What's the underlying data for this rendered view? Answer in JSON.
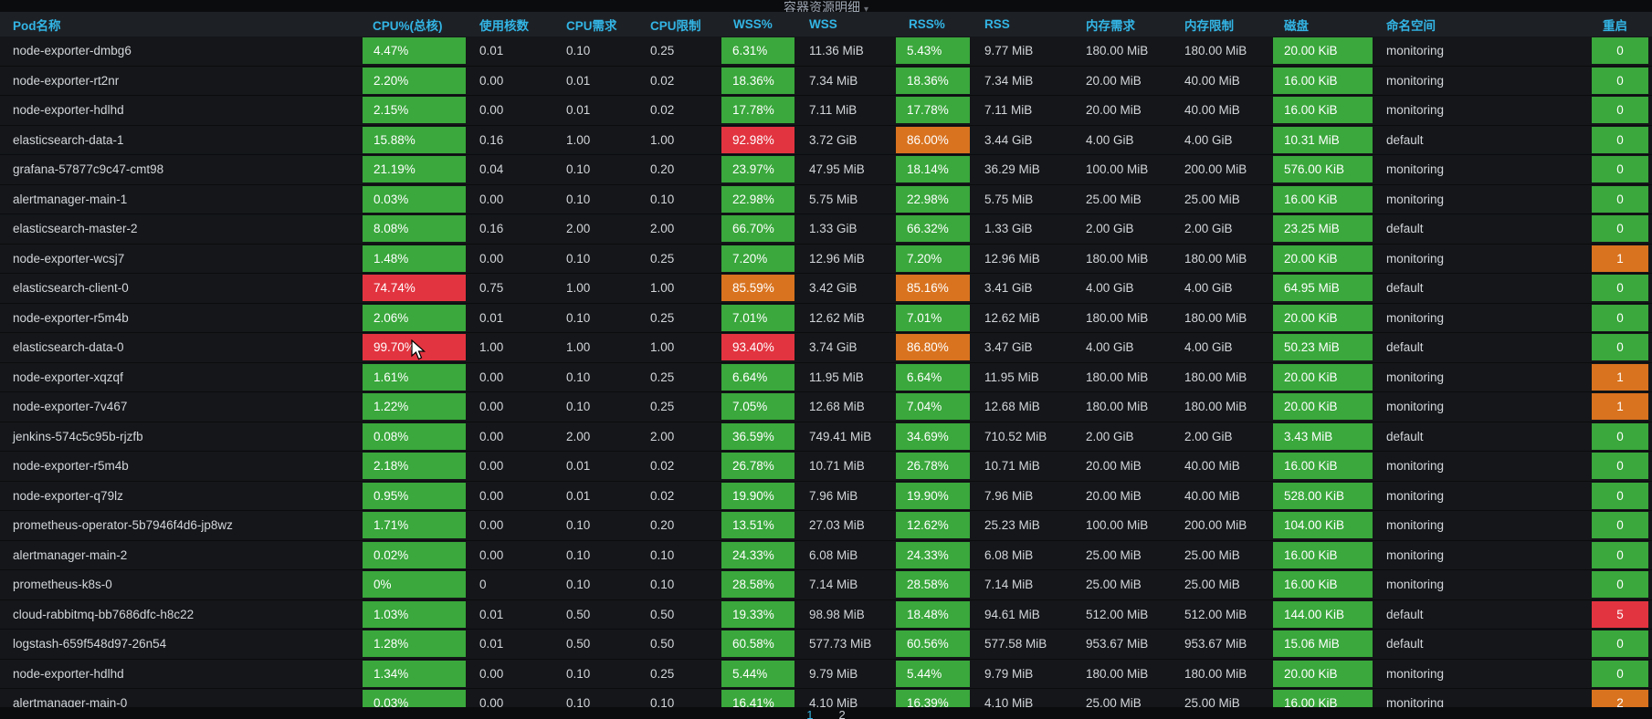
{
  "panel": {
    "title": "容器资源明细"
  },
  "columns": [
    "Pod名称",
    "CPU%(总核)",
    "使用核数",
    "CPU需求",
    "CPU限制",
    "WSS%",
    "WSS",
    "RSS%",
    "RSS",
    "内存需求",
    "内存限制",
    "磁盘",
    "命名空间",
    "重启"
  ],
  "colors": {
    "green": "#3aa83c",
    "orange": "#d9731f",
    "red": "#e23440",
    "header_blue": "#33b5e5"
  },
  "rows": [
    {
      "pod": "node-exporter-dmbg6",
      "cpu_pct": "4.47%",
      "cpu_pct_level": "green",
      "cores": "0.01",
      "cpu_req": "0.10",
      "cpu_lim": "0.25",
      "wss_pct": "6.31%",
      "wss_pct_level": "green",
      "wss": "11.36 MiB",
      "rss_pct": "5.43%",
      "rss_pct_level": "green",
      "rss": "9.77 MiB",
      "mem_req": "180.00 MiB",
      "mem_lim": "180.00 MiB",
      "disk": "20.00 KiB",
      "namespace": "monitoring",
      "restarts": "0",
      "restarts_level": "green"
    },
    {
      "pod": "node-exporter-rt2nr",
      "cpu_pct": "2.20%",
      "cpu_pct_level": "green",
      "cores": "0.00",
      "cpu_req": "0.01",
      "cpu_lim": "0.02",
      "wss_pct": "18.36%",
      "wss_pct_level": "green",
      "wss": "7.34 MiB",
      "rss_pct": "18.36%",
      "rss_pct_level": "green",
      "rss": "7.34 MiB",
      "mem_req": "20.00 MiB",
      "mem_lim": "40.00 MiB",
      "disk": "16.00 KiB",
      "namespace": "monitoring",
      "restarts": "0",
      "restarts_level": "green"
    },
    {
      "pod": "node-exporter-hdlhd",
      "cpu_pct": "2.15%",
      "cpu_pct_level": "green",
      "cores": "0.00",
      "cpu_req": "0.01",
      "cpu_lim": "0.02",
      "wss_pct": "17.78%",
      "wss_pct_level": "green",
      "wss": "7.11 MiB",
      "rss_pct": "17.78%",
      "rss_pct_level": "green",
      "rss": "7.11 MiB",
      "mem_req": "20.00 MiB",
      "mem_lim": "40.00 MiB",
      "disk": "16.00 KiB",
      "namespace": "monitoring",
      "restarts": "0",
      "restarts_level": "green"
    },
    {
      "pod": "elasticsearch-data-1",
      "cpu_pct": "15.88%",
      "cpu_pct_level": "green",
      "cores": "0.16",
      "cpu_req": "1.00",
      "cpu_lim": "1.00",
      "wss_pct": "92.98%",
      "wss_pct_level": "red",
      "wss": "3.72 GiB",
      "rss_pct": "86.00%",
      "rss_pct_level": "orange",
      "rss": "3.44 GiB",
      "mem_req": "4.00 GiB",
      "mem_lim": "4.00 GiB",
      "disk": "10.31 MiB",
      "namespace": "default",
      "restarts": "0",
      "restarts_level": "green"
    },
    {
      "pod": "grafana-57877c9c47-cmt98",
      "cpu_pct": "21.19%",
      "cpu_pct_level": "green",
      "cores": "0.04",
      "cpu_req": "0.10",
      "cpu_lim": "0.20",
      "wss_pct": "23.97%",
      "wss_pct_level": "green",
      "wss": "47.95 MiB",
      "rss_pct": "18.14%",
      "rss_pct_level": "green",
      "rss": "36.29 MiB",
      "mem_req": "100.00 MiB",
      "mem_lim": "200.00 MiB",
      "disk": "576.00 KiB",
      "namespace": "monitoring",
      "restarts": "0",
      "restarts_level": "green"
    },
    {
      "pod": "alertmanager-main-1",
      "cpu_pct": "0.03%",
      "cpu_pct_level": "green",
      "cores": "0.00",
      "cpu_req": "0.10",
      "cpu_lim": "0.10",
      "wss_pct": "22.98%",
      "wss_pct_level": "green",
      "wss": "5.75 MiB",
      "rss_pct": "22.98%",
      "rss_pct_level": "green",
      "rss": "5.75 MiB",
      "mem_req": "25.00 MiB",
      "mem_lim": "25.00 MiB",
      "disk": "16.00 KiB",
      "namespace": "monitoring",
      "restarts": "0",
      "restarts_level": "green"
    },
    {
      "pod": "elasticsearch-master-2",
      "cpu_pct": "8.08%",
      "cpu_pct_level": "green",
      "cores": "0.16",
      "cpu_req": "2.00",
      "cpu_lim": "2.00",
      "wss_pct": "66.70%",
      "wss_pct_level": "green",
      "wss": "1.33 GiB",
      "rss_pct": "66.32%",
      "rss_pct_level": "green",
      "rss": "1.33 GiB",
      "mem_req": "2.00 GiB",
      "mem_lim": "2.00 GiB",
      "disk": "23.25 MiB",
      "namespace": "default",
      "restarts": "0",
      "restarts_level": "green"
    },
    {
      "pod": "node-exporter-wcsj7",
      "cpu_pct": "1.48%",
      "cpu_pct_level": "green",
      "cores": "0.00",
      "cpu_req": "0.10",
      "cpu_lim": "0.25",
      "wss_pct": "7.20%",
      "wss_pct_level": "green",
      "wss": "12.96 MiB",
      "rss_pct": "7.20%",
      "rss_pct_level": "green",
      "rss": "12.96 MiB",
      "mem_req": "180.00 MiB",
      "mem_lim": "180.00 MiB",
      "disk": "20.00 KiB",
      "namespace": "monitoring",
      "restarts": "1",
      "restarts_level": "orange"
    },
    {
      "pod": "elasticsearch-client-0",
      "cpu_pct": "74.74%",
      "cpu_pct_level": "red",
      "cores": "0.75",
      "cpu_req": "1.00",
      "cpu_lim": "1.00",
      "wss_pct": "85.59%",
      "wss_pct_level": "orange",
      "wss": "3.42 GiB",
      "rss_pct": "85.16%",
      "rss_pct_level": "orange",
      "rss": "3.41 GiB",
      "mem_req": "4.00 GiB",
      "mem_lim": "4.00 GiB",
      "disk": "64.95 MiB",
      "namespace": "default",
      "restarts": "0",
      "restarts_level": "green"
    },
    {
      "pod": "node-exporter-r5m4b",
      "cpu_pct": "2.06%",
      "cpu_pct_level": "green",
      "cores": "0.01",
      "cpu_req": "0.10",
      "cpu_lim": "0.25",
      "wss_pct": "7.01%",
      "wss_pct_level": "green",
      "wss": "12.62 MiB",
      "rss_pct": "7.01%",
      "rss_pct_level": "green",
      "rss": "12.62 MiB",
      "mem_req": "180.00 MiB",
      "mem_lim": "180.00 MiB",
      "disk": "20.00 KiB",
      "namespace": "monitoring",
      "restarts": "0",
      "restarts_level": "green"
    },
    {
      "pod": "elasticsearch-data-0",
      "cpu_pct": "99.70%",
      "cpu_pct_level": "red",
      "cores": "1.00",
      "cpu_req": "1.00",
      "cpu_lim": "1.00",
      "wss_pct": "93.40%",
      "wss_pct_level": "red",
      "wss": "3.74 GiB",
      "rss_pct": "86.80%",
      "rss_pct_level": "orange",
      "rss": "3.47 GiB",
      "mem_req": "4.00 GiB",
      "mem_lim": "4.00 GiB",
      "disk": "50.23 MiB",
      "namespace": "default",
      "restarts": "0",
      "restarts_level": "green"
    },
    {
      "pod": "node-exporter-xqzqf",
      "cpu_pct": "1.61%",
      "cpu_pct_level": "green",
      "cores": "0.00",
      "cpu_req": "0.10",
      "cpu_lim": "0.25",
      "wss_pct": "6.64%",
      "wss_pct_level": "green",
      "wss": "11.95 MiB",
      "rss_pct": "6.64%",
      "rss_pct_level": "green",
      "rss": "11.95 MiB",
      "mem_req": "180.00 MiB",
      "mem_lim": "180.00 MiB",
      "disk": "20.00 KiB",
      "namespace": "monitoring",
      "restarts": "1",
      "restarts_level": "orange"
    },
    {
      "pod": "node-exporter-7v467",
      "cpu_pct": "1.22%",
      "cpu_pct_level": "green",
      "cores": "0.00",
      "cpu_req": "0.10",
      "cpu_lim": "0.25",
      "wss_pct": "7.05%",
      "wss_pct_level": "green",
      "wss": "12.68 MiB",
      "rss_pct": "7.04%",
      "rss_pct_level": "green",
      "rss": "12.68 MiB",
      "mem_req": "180.00 MiB",
      "mem_lim": "180.00 MiB",
      "disk": "20.00 KiB",
      "namespace": "monitoring",
      "restarts": "1",
      "restarts_level": "orange"
    },
    {
      "pod": "jenkins-574c5c95b-rjzfb",
      "cpu_pct": "0.08%",
      "cpu_pct_level": "green",
      "cores": "0.00",
      "cpu_req": "2.00",
      "cpu_lim": "2.00",
      "wss_pct": "36.59%",
      "wss_pct_level": "green",
      "wss": "749.41 MiB",
      "rss_pct": "34.69%",
      "rss_pct_level": "green",
      "rss": "710.52 MiB",
      "mem_req": "2.00 GiB",
      "mem_lim": "2.00 GiB",
      "disk": "3.43 MiB",
      "namespace": "default",
      "restarts": "0",
      "restarts_level": "green"
    },
    {
      "pod": "node-exporter-r5m4b",
      "cpu_pct": "2.18%",
      "cpu_pct_level": "green",
      "cores": "0.00",
      "cpu_req": "0.01",
      "cpu_lim": "0.02",
      "wss_pct": "26.78%",
      "wss_pct_level": "green",
      "wss": "10.71 MiB",
      "rss_pct": "26.78%",
      "rss_pct_level": "green",
      "rss": "10.71 MiB",
      "mem_req": "20.00 MiB",
      "mem_lim": "40.00 MiB",
      "disk": "16.00 KiB",
      "namespace": "monitoring",
      "restarts": "0",
      "restarts_level": "green"
    },
    {
      "pod": "node-exporter-q79lz",
      "cpu_pct": "0.95%",
      "cpu_pct_level": "green",
      "cores": "0.00",
      "cpu_req": "0.01",
      "cpu_lim": "0.02",
      "wss_pct": "19.90%",
      "wss_pct_level": "green",
      "wss": "7.96 MiB",
      "rss_pct": "19.90%",
      "rss_pct_level": "green",
      "rss": "7.96 MiB",
      "mem_req": "20.00 MiB",
      "mem_lim": "40.00 MiB",
      "disk": "528.00 KiB",
      "namespace": "monitoring",
      "restarts": "0",
      "restarts_level": "green"
    },
    {
      "pod": "prometheus-operator-5b7946f4d6-jp8wz",
      "cpu_pct": "1.71%",
      "cpu_pct_level": "green",
      "cores": "0.00",
      "cpu_req": "0.10",
      "cpu_lim": "0.20",
      "wss_pct": "13.51%",
      "wss_pct_level": "green",
      "wss": "27.03 MiB",
      "rss_pct": "12.62%",
      "rss_pct_level": "green",
      "rss": "25.23 MiB",
      "mem_req": "100.00 MiB",
      "mem_lim": "200.00 MiB",
      "disk": "104.00 KiB",
      "namespace": "monitoring",
      "restarts": "0",
      "restarts_level": "green"
    },
    {
      "pod": "alertmanager-main-2",
      "cpu_pct": "0.02%",
      "cpu_pct_level": "green",
      "cores": "0.00",
      "cpu_req": "0.10",
      "cpu_lim": "0.10",
      "wss_pct": "24.33%",
      "wss_pct_level": "green",
      "wss": "6.08 MiB",
      "rss_pct": "24.33%",
      "rss_pct_level": "green",
      "rss": "6.08 MiB",
      "mem_req": "25.00 MiB",
      "mem_lim": "25.00 MiB",
      "disk": "16.00 KiB",
      "namespace": "monitoring",
      "restarts": "0",
      "restarts_level": "green"
    },
    {
      "pod": "prometheus-k8s-0",
      "cpu_pct": "0%",
      "cpu_pct_level": "green",
      "cores": "0",
      "cpu_req": "0.10",
      "cpu_lim": "0.10",
      "wss_pct": "28.58%",
      "wss_pct_level": "green",
      "wss": "7.14 MiB",
      "rss_pct": "28.58%",
      "rss_pct_level": "green",
      "rss": "7.14 MiB",
      "mem_req": "25.00 MiB",
      "mem_lim": "25.00 MiB",
      "disk": "16.00 KiB",
      "namespace": "monitoring",
      "restarts": "0",
      "restarts_level": "green"
    },
    {
      "pod": "cloud-rabbitmq-bb7686dfc-h8c22",
      "cpu_pct": "1.03%",
      "cpu_pct_level": "green",
      "cores": "0.01",
      "cpu_req": "0.50",
      "cpu_lim": "0.50",
      "wss_pct": "19.33%",
      "wss_pct_level": "green",
      "wss": "98.98 MiB",
      "rss_pct": "18.48%",
      "rss_pct_level": "green",
      "rss": "94.61 MiB",
      "mem_req": "512.00 MiB",
      "mem_lim": "512.00 MiB",
      "disk": "144.00 KiB",
      "namespace": "default",
      "restarts": "5",
      "restarts_level": "red"
    },
    {
      "pod": "logstash-659f548d97-26n54",
      "cpu_pct": "1.28%",
      "cpu_pct_level": "green",
      "cores": "0.01",
      "cpu_req": "0.50",
      "cpu_lim": "0.50",
      "wss_pct": "60.58%",
      "wss_pct_level": "green",
      "wss": "577.73 MiB",
      "rss_pct": "60.56%",
      "rss_pct_level": "green",
      "rss": "577.58 MiB",
      "mem_req": "953.67 MiB",
      "mem_lim": "953.67 MiB",
      "disk": "15.06 MiB",
      "namespace": "default",
      "restarts": "0",
      "restarts_level": "green"
    },
    {
      "pod": "node-exporter-hdlhd",
      "cpu_pct": "1.34%",
      "cpu_pct_level": "green",
      "cores": "0.00",
      "cpu_req": "0.10",
      "cpu_lim": "0.25",
      "wss_pct": "5.44%",
      "wss_pct_level": "green",
      "wss": "9.79 MiB",
      "rss_pct": "5.44%",
      "rss_pct_level": "green",
      "rss": "9.79 MiB",
      "mem_req": "180.00 MiB",
      "mem_lim": "180.00 MiB",
      "disk": "20.00 KiB",
      "namespace": "monitoring",
      "restarts": "0",
      "restarts_level": "green"
    },
    {
      "pod": "alertmanager-main-0",
      "cpu_pct": "0.03%",
      "cpu_pct_level": "green",
      "cores": "0.00",
      "cpu_req": "0.10",
      "cpu_lim": "0.10",
      "wss_pct": "16.41%",
      "wss_pct_level": "green",
      "wss": "4.10 MiB",
      "rss_pct": "16.39%",
      "rss_pct_level": "green",
      "rss": "4.10 MiB",
      "mem_req": "25.00 MiB",
      "mem_lim": "25.00 MiB",
      "disk": "16.00 KiB",
      "namespace": "monitoring",
      "restarts": "2",
      "restarts_level": "orange"
    }
  ],
  "pagination": {
    "pages": [
      "1",
      "2"
    ],
    "current": "1"
  }
}
